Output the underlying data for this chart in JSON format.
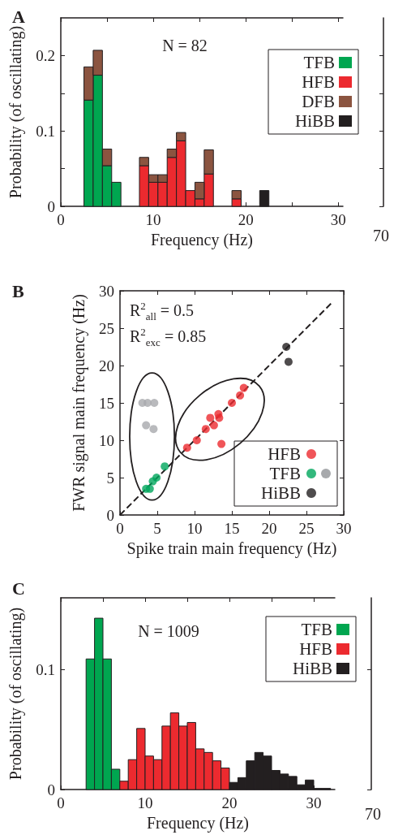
{
  "chart_data": [
    {
      "type": "bar",
      "title": "A",
      "xlabel": "Frequency (Hz)",
      "ylabel": "Probability (of oscillating)",
      "annotations": [
        "N = 82",
        "70"
      ],
      "x": [
        3,
        4,
        5,
        6,
        9,
        10,
        11,
        12,
        13,
        14,
        15,
        16,
        19,
        22
      ],
      "stacked": true,
      "series": [
        {
          "name": "TFB",
          "color": "#00a650",
          "values": [
            0.141,
            0.174,
            0.054,
            0.032,
            null,
            null,
            null,
            null,
            null,
            null,
            null,
            null,
            null,
            null
          ]
        },
        {
          "name": "HFB",
          "color": "#ec2a2f",
          "values": [
            null,
            null,
            null,
            null,
            0.054,
            0.032,
            0.032,
            0.065,
            0.087,
            0.021,
            0.01,
            0.043,
            0.01,
            null
          ]
        },
        {
          "name": "DFB",
          "color": "#8b5440",
          "values": [
            0.044,
            0.033,
            0.022,
            null,
            0.011,
            0.01,
            0.01,
            0.011,
            0.011,
            null,
            0.022,
            0.032,
            0.011,
            null
          ]
        },
        {
          "name": "HiBB",
          "color": "#231f20",
          "values": [
            null,
            null,
            null,
            null,
            null,
            null,
            null,
            null,
            null,
            null,
            null,
            null,
            null,
            0.021
          ]
        }
      ],
      "xlim": [
        0,
        30.5
      ],
      "xticks": [
        0,
        {
          "value": 5,
          "label": null
        },
        10,
        {
          "value": 15,
          "label": null
        },
        20,
        {
          "value": 25,
          "label": null
        },
        30
      ],
      "ylim": [
        0,
        0.25
      ],
      "yticks": [
        0,
        {
          "value": 0.05,
          "label": null
        },
        0.1,
        {
          "value": 0.15,
          "label": null
        },
        0.2
      ],
      "legend": "top right"
    },
    {
      "type": "scatter",
      "title": "B",
      "xlabel": "Spike train main frequency (Hz)",
      "ylabel": "FWR signal main frequency (Hz)",
      "annotations": [
        "R$^{2}$$_{all}$ = 0.5",
        "R$^{2}$$_{exc}$ = 0.85"
      ],
      "marker": "circle",
      "series": [
        {
          "name": "HFB",
          "color": "#ec2a2f",
          "x": [
            9.0,
            10.3,
            11.5,
            12.1,
            12.6,
            13.2,
            13.3,
            13.6,
            15.0,
            16.1,
            16.6
          ],
          "values": [
            9.0,
            10.0,
            11.5,
            13.0,
            12.0,
            13.5,
            13.0,
            9.5,
            15.0,
            16.0,
            17.0
          ]
        },
        {
          "name": "TFB",
          "color": "#00a65d",
          "x": [
            3.5,
            4.0,
            4.4,
            4.9,
            6.0
          ],
          "values": [
            3.5,
            3.5,
            4.5,
            5.0,
            6.5
          ]
        },
        {
          "color": "#a7a9ac",
          "x": [
            3.0,
            3.7,
            4.6,
            3.5,
            4.5
          ],
          "values": [
            15.0,
            15.0,
            15.0,
            12.0,
            11.5
          ]
        },
        {
          "name": "HiBB",
          "color": "#231f20",
          "x": [
            22.3,
            22.6
          ],
          "values": [
            22.5,
            20.5
          ]
        },
        {
          "type": "line",
          "color": "#231f20",
          "line_style": "dashed",
          "marker": "none",
          "x": [
            0,
            28.4
          ],
          "values": [
            0,
            28.4
          ]
        }
      ],
      "xlim": [
        0,
        30
      ],
      "xticks": [
        0,
        5,
        10,
        15,
        20,
        25,
        30
      ],
      "ylim": [
        0,
        30
      ],
      "yticks": [
        0,
        5,
        10,
        15,
        20,
        25,
        30
      ],
      "legend": "bottom right"
    },
    {
      "type": "histogram",
      "title": "C",
      "xlabel": "Frequency (Hz)",
      "ylabel": "Probability (of oscillating)",
      "annotations": [
        "N = 1009",
        "70"
      ],
      "bins": [
        3,
        4,
        5,
        6,
        7,
        8,
        9,
        10,
        11,
        12,
        13,
        14,
        15,
        16,
        17,
        18,
        19,
        20,
        21,
        22,
        23,
        24,
        25,
        26,
        27,
        28,
        29,
        30,
        31,
        32
      ],
      "series": [
        {
          "name": "TFB",
          "color": "#00a650",
          "values": [
            0.109,
            0.143,
            0.109,
            0.017,
            null,
            null,
            null,
            null,
            null,
            null,
            null,
            null,
            null,
            null,
            null,
            null,
            null,
            null,
            null,
            null,
            null,
            null,
            null,
            null,
            null,
            null,
            null,
            null,
            null
          ]
        },
        {
          "name": "HFB",
          "color": "#ec2a2f",
          "values": [
            null,
            null,
            null,
            null,
            0.007,
            0.025,
            0.051,
            0.028,
            0.025,
            0.053,
            0.064,
            0.053,
            0.056,
            0.034,
            0.031,
            0.024,
            0.018,
            null,
            null,
            null,
            null,
            null,
            null,
            null,
            null,
            null,
            null,
            null,
            null
          ]
        },
        {
          "name": "HiBB",
          "color": "#231f20",
          "values": [
            null,
            null,
            null,
            null,
            null,
            null,
            null,
            null,
            null,
            null,
            null,
            null,
            null,
            null,
            null,
            null,
            null,
            0.006,
            0.01,
            0.024,
            0.031,
            0.028,
            0.016,
            0.013,
            0.011,
            0.004,
            0.008,
            0.001,
            0.001
          ]
        }
      ],
      "xlim": [
        0,
        32.5
      ],
      "xticks": [
        0,
        {
          "value": 5,
          "label": null
        },
        10,
        {
          "value": 15,
          "label": null
        },
        20,
        {
          "value": 25,
          "label": null
        },
        30
      ],
      "ylim": [
        0,
        0.16
      ],
      "yticks": [
        0,
        0.1
      ],
      "legend": "top right"
    }
  ]
}
